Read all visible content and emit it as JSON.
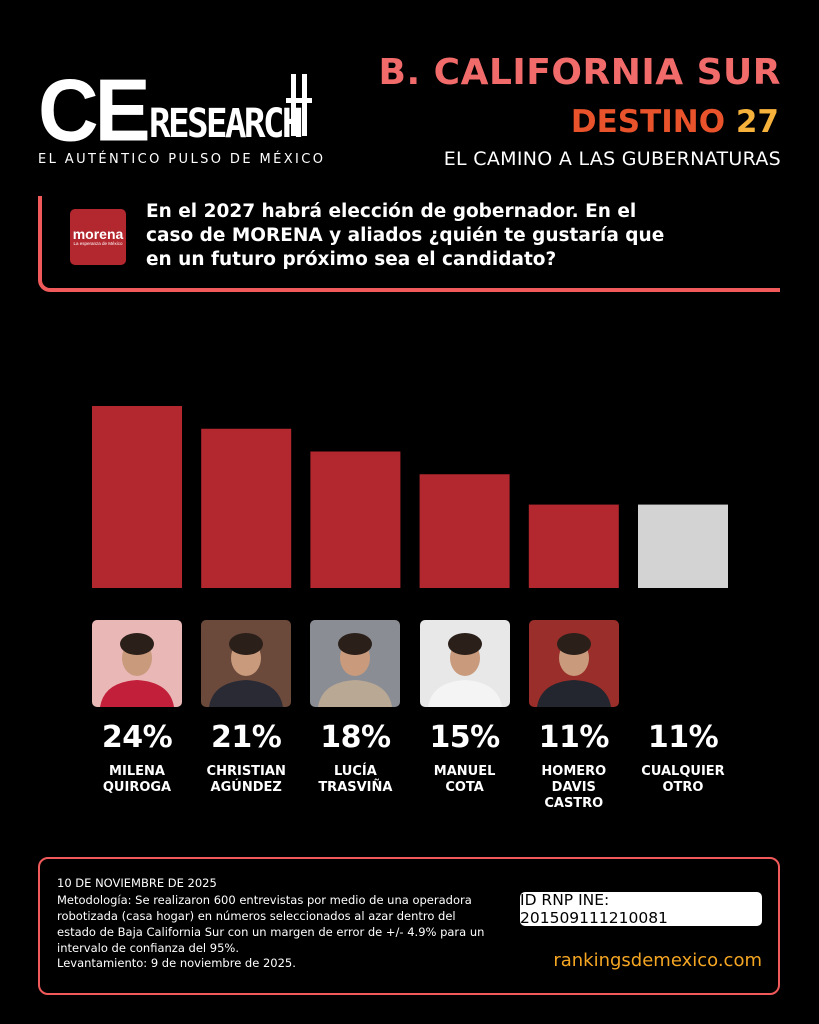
{
  "brand": {
    "logo_ce": "CE",
    "logo_research": "RESEARCH",
    "tagline": "EL AUTÉNTICO PULSO DE MÉXICO"
  },
  "header": {
    "title": "B. CALIFORNIA SUR",
    "subtitle_word": "DESTINO",
    "subtitle_num": "27",
    "description": "EL CAMINO A LAS GUBERNATURAS"
  },
  "party_logo": {
    "name": "morena",
    "slogan": "La esperanza de México"
  },
  "question": "En el 2027 habrá elección de gobernador. En el caso de MORENA y aliados ¿quién te gustaría que en un futuro próximo sea el candidato?",
  "colors": {
    "accent": "#f05a5a",
    "bar_main": "#b3272f",
    "bar_other": "#d3d3d3",
    "title": "#f26b6b",
    "destino": "#e8532b",
    "number": "#f6b23a",
    "site": "#f5a623"
  },
  "chart_data": {
    "type": "bar",
    "categories": [
      "MILENA QUIROGA",
      "CHRISTIAN AGÚNDEZ",
      "LUCÍA TRASVIÑA",
      "MANUEL COTA",
      "HOMERO DAVIS CASTRO",
      "CUALQUIER OTRO"
    ],
    "values": [
      24,
      21,
      18,
      15,
      11,
      11
    ],
    "value_labels": [
      "24%",
      "21%",
      "18%",
      "15%",
      "11%",
      "11%"
    ],
    "candidate_lines": [
      [
        "MILENA",
        "QUIROGA"
      ],
      [
        "CHRISTIAN",
        "AGÚNDEZ"
      ],
      [
        "LUCÍA",
        "TRASVIÑA"
      ],
      [
        "MANUEL",
        "COTA"
      ],
      [
        "HOMERO",
        "DAVIS",
        "CASTRO"
      ],
      [
        "CUALQUIER",
        "OTRO"
      ]
    ],
    "bar_colors": [
      "#b3272f",
      "#b3272f",
      "#b3272f",
      "#b3272f",
      "#b3272f",
      "#d3d3d3"
    ],
    "has_photo": [
      true,
      true,
      true,
      true,
      true,
      false
    ],
    "ylim": [
      0,
      24
    ]
  },
  "footer": {
    "date": "10 DE NOVIEMBRE DE 2025",
    "methodology": "Metodología: Se realizaron 600 entrevistas por medio de una operadora robotizada (casa hogar) en números seleccionados al azar dentro del estado de Baja California Sur con un margen de error de +/- 4.9% para un intervalo de confianza del 95%.",
    "survey_date": "Levantamiento: 9 de noviembre de 2025.",
    "rnp": "ID RNP INE: 201509111210081",
    "website": "rankingsdemexico.com"
  }
}
